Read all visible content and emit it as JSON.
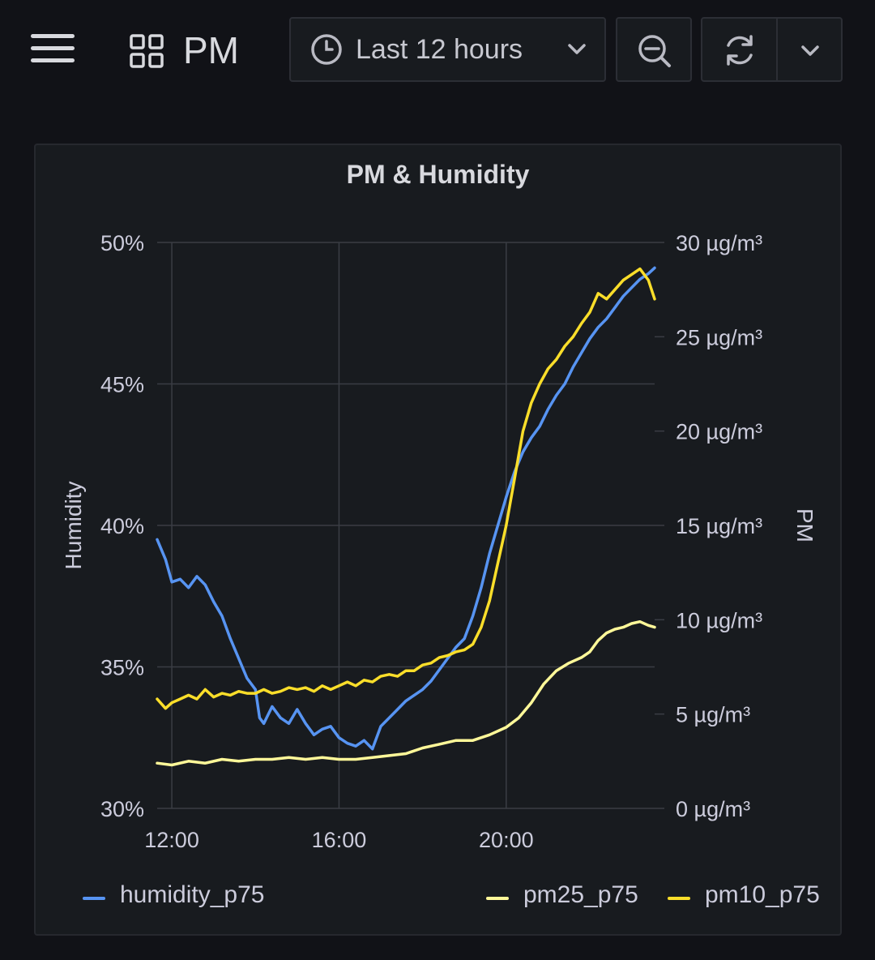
{
  "header": {
    "menu_icon": "hamburger-menu-icon",
    "dashboard_icon": "dashboard-grid-icon",
    "title": "PM",
    "time_picker": {
      "label": "Last 12 hours",
      "icon": "clock-icon"
    },
    "zoom_out_icon": "zoom-out-icon",
    "refresh_icon": "refresh-icon",
    "refresh_dropdown_icon": "chevron-down-icon"
  },
  "panel": {
    "title": "PM & Humidity"
  },
  "colors": {
    "humidity": "#5794f2",
    "pm25": "#fff899",
    "pm10": "#fade2a",
    "grid": "#3a3d44",
    "text": "#ccccdc"
  },
  "chart_data": {
    "type": "line",
    "title": "PM & Humidity",
    "xlabel": "",
    "x_ticks": [
      "12:00",
      "16:00",
      "20:00"
    ],
    "x_tick_hours": [
      12,
      16,
      20
    ],
    "xlim": [
      11.65,
      23.55
    ],
    "y_left": {
      "label": "Humidity",
      "unit": "%",
      "range": [
        30,
        50
      ],
      "ticks": [
        "30%",
        "35%",
        "40%",
        "45%",
        "50%"
      ],
      "tick_values": [
        30,
        35,
        40,
        45,
        50
      ]
    },
    "y_right": {
      "label": "PM",
      "unit": "µg/m³",
      "range": [
        0,
        30
      ],
      "ticks": [
        "0 µg/m³",
        "5 µg/m³",
        "10 µg/m³",
        "15 µg/m³",
        "20 µg/m³",
        "25 µg/m³",
        "30 µg/m³"
      ],
      "tick_values": [
        0,
        5,
        10,
        15,
        20,
        25,
        30
      ]
    },
    "legend_position": "bottom",
    "grid": true,
    "series": [
      {
        "name": "humidity_p75",
        "axis": "left",
        "x": [
          11.65,
          11.85,
          12.0,
          12.2,
          12.4,
          12.6,
          12.8,
          13.0,
          13.2,
          13.4,
          13.6,
          13.8,
          14.0,
          14.1,
          14.2,
          14.4,
          14.6,
          14.8,
          15.0,
          15.2,
          15.4,
          15.6,
          15.8,
          16.0,
          16.2,
          16.4,
          16.6,
          16.8,
          17.0,
          17.2,
          17.4,
          17.6,
          17.8,
          18.0,
          18.2,
          18.4,
          18.6,
          18.8,
          19.0,
          19.2,
          19.4,
          19.6,
          19.8,
          20.0,
          20.2,
          20.4,
          20.6,
          20.8,
          21.0,
          21.2,
          21.4,
          21.6,
          21.8,
          22.0,
          22.2,
          22.4,
          22.6,
          22.8,
          23.0,
          23.2,
          23.4,
          23.55
        ],
        "values": [
          39.5,
          38.8,
          38.0,
          38.1,
          37.8,
          38.2,
          37.9,
          37.3,
          36.8,
          36.0,
          35.3,
          34.6,
          34.2,
          33.2,
          33.0,
          33.6,
          33.2,
          33.0,
          33.5,
          33.0,
          32.6,
          32.8,
          32.9,
          32.5,
          32.3,
          32.2,
          32.4,
          32.1,
          32.9,
          33.2,
          33.5,
          33.8,
          34.0,
          34.2,
          34.5,
          34.9,
          35.3,
          35.7,
          36.0,
          36.8,
          37.8,
          39.0,
          40.0,
          41.0,
          41.9,
          42.6,
          43.1,
          43.5,
          44.1,
          44.6,
          45.0,
          45.6,
          46.1,
          46.6,
          47.0,
          47.3,
          47.7,
          48.1,
          48.4,
          48.7,
          48.9,
          49.1
        ]
      },
      {
        "name": "pm25_p75",
        "axis": "right",
        "x": [
          11.65,
          12.0,
          12.4,
          12.8,
          13.2,
          13.6,
          14.0,
          14.4,
          14.8,
          15.2,
          15.6,
          16.0,
          16.4,
          16.8,
          17.2,
          17.6,
          18.0,
          18.4,
          18.8,
          19.2,
          19.6,
          20.0,
          20.3,
          20.6,
          20.9,
          21.2,
          21.5,
          21.8,
          22.0,
          22.2,
          22.4,
          22.6,
          22.8,
          23.0,
          23.2,
          23.4,
          23.55
        ],
        "values": [
          2.4,
          2.3,
          2.5,
          2.4,
          2.6,
          2.5,
          2.6,
          2.6,
          2.7,
          2.6,
          2.7,
          2.6,
          2.6,
          2.7,
          2.8,
          2.9,
          3.2,
          3.4,
          3.6,
          3.6,
          3.9,
          4.3,
          4.8,
          5.6,
          6.6,
          7.3,
          7.7,
          8.0,
          8.3,
          8.9,
          9.3,
          9.5,
          9.6,
          9.8,
          9.9,
          9.7,
          9.6
        ]
      },
      {
        "name": "pm10_p75",
        "axis": "right",
        "x": [
          11.65,
          11.85,
          12.0,
          12.2,
          12.4,
          12.6,
          12.8,
          13.0,
          13.2,
          13.4,
          13.6,
          13.8,
          14.0,
          14.2,
          14.4,
          14.6,
          14.8,
          15.0,
          15.2,
          15.4,
          15.6,
          15.8,
          16.0,
          16.2,
          16.4,
          16.6,
          16.8,
          17.0,
          17.2,
          17.4,
          17.6,
          17.8,
          18.0,
          18.2,
          18.4,
          18.6,
          18.8,
          19.0,
          19.2,
          19.4,
          19.6,
          19.8,
          20.0,
          20.2,
          20.4,
          20.6,
          20.8,
          21.0,
          21.2,
          21.4,
          21.6,
          21.8,
          22.0,
          22.2,
          22.4,
          22.6,
          22.8,
          23.0,
          23.2,
          23.4,
          23.55
        ],
        "values": [
          5.8,
          5.3,
          5.6,
          5.8,
          6.0,
          5.8,
          6.3,
          5.9,
          6.1,
          6.0,
          6.2,
          6.1,
          6.1,
          6.3,
          6.1,
          6.2,
          6.4,
          6.3,
          6.4,
          6.2,
          6.5,
          6.3,
          6.5,
          6.7,
          6.5,
          6.8,
          6.7,
          7.0,
          7.1,
          7.0,
          7.3,
          7.3,
          7.6,
          7.7,
          8.0,
          8.1,
          8.3,
          8.4,
          8.7,
          9.6,
          11.0,
          13.0,
          15.0,
          17.5,
          20.0,
          21.5,
          22.5,
          23.3,
          23.8,
          24.5,
          25.0,
          25.7,
          26.3,
          27.3,
          27.0,
          27.5,
          28.0,
          28.3,
          28.6,
          28.0,
          27.0
        ]
      }
    ]
  },
  "legend": [
    {
      "label": "humidity_p75"
    },
    {
      "label": "pm25_p75"
    },
    {
      "label": "pm10_p75"
    }
  ]
}
